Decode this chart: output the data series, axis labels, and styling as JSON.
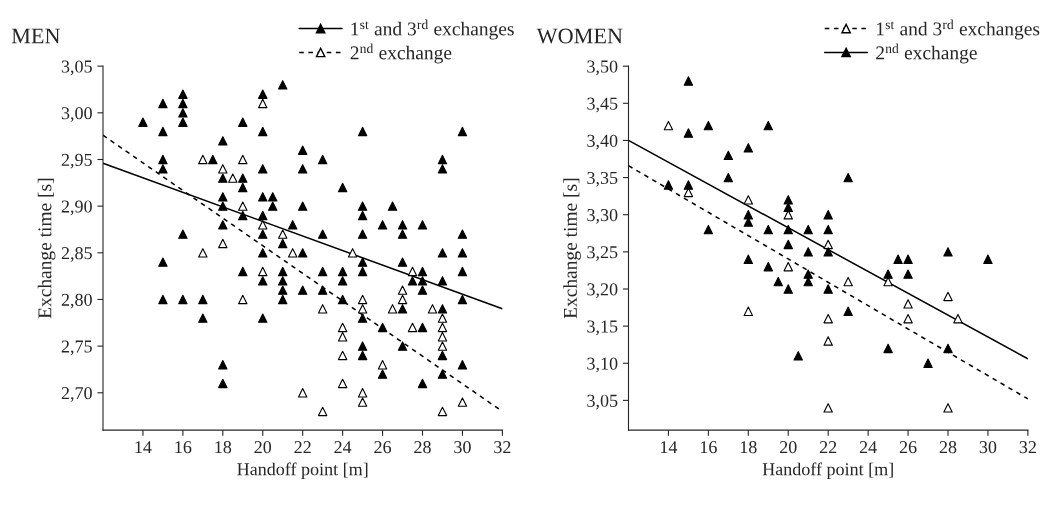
{
  "chart_data": [
    {
      "type": "scatter",
      "title": "MEN",
      "xlabel": "Handoff point [m]",
      "ylabel": "Exchange time [s]",
      "xlim": [
        12,
        32
      ],
      "ylim": [
        2.66,
        3.05
      ],
      "xticks": [
        14,
        16,
        18,
        20,
        22,
        24,
        26,
        28,
        30,
        32
      ],
      "yticks": [
        {
          "value": 2.7,
          "label": "2,70"
        },
        {
          "value": 2.75,
          "label": "2,75"
        },
        {
          "value": 2.8,
          "label": "2,80"
        },
        {
          "value": 2.85,
          "label": "2,85"
        },
        {
          "value": 2.9,
          "label": "2,90"
        },
        {
          "value": 2.95,
          "label": "2,95"
        },
        {
          "value": 3.0,
          "label": "3,00"
        },
        {
          "value": 3.05,
          "label": "3,05"
        }
      ],
      "grid": false,
      "legend": "top right",
      "series": [
        {
          "name": "1$^{st}$ and 3$^{rd}$ exchanges",
          "marker": "triangle",
          "color": "#000000",
          "x": [
            14,
            15,
            15,
            15,
            15,
            15,
            15,
            16,
            16,
            16,
            16,
            16,
            16,
            17,
            17,
            17.5,
            18,
            18,
            18,
            18,
            18,
            18,
            18,
            19,
            19,
            19,
            19,
            19,
            20,
            20,
            20,
            20,
            20,
            20,
            20,
            20,
            20,
            20.5,
            20.5,
            21,
            21,
            21,
            21,
            21,
            21,
            21.5,
            22,
            22,
            22,
            22,
            22,
            23,
            23,
            23,
            23,
            24,
            24,
            24,
            24,
            25,
            25,
            25,
            25,
            25,
            25,
            25,
            25,
            25,
            26,
            26,
            26,
            26.5,
            27,
            27,
            27,
            27,
            27,
            27.5,
            28,
            28,
            28,
            28,
            28,
            28,
            29,
            29,
            29,
            29,
            29,
            29,
            29,
            30,
            30,
            30,
            30,
            30,
            30
          ],
          "values": [
            2.99,
            3.01,
            2.98,
            2.95,
            2.94,
            2.84,
            2.8,
            3.02,
            3.01,
            3.0,
            2.99,
            2.87,
            2.8,
            2.8,
            2.78,
            2.95,
            2.97,
            2.93,
            2.91,
            2.9,
            2.88,
            2.73,
            2.71,
            2.99,
            2.93,
            2.92,
            2.89,
            2.83,
            3.02,
            2.98,
            2.94,
            2.91,
            2.89,
            2.87,
            2.85,
            2.82,
            2.78,
            2.91,
            2.9,
            3.03,
            2.86,
            2.83,
            2.82,
            2.81,
            2.8,
            2.88,
            2.96,
            2.94,
            2.9,
            2.85,
            2.81,
            2.95,
            2.87,
            2.83,
            2.81,
            2.92,
            2.83,
            2.82,
            2.8,
            2.98,
            2.9,
            2.89,
            2.87,
            2.84,
            2.83,
            2.78,
            2.75,
            2.74,
            2.88,
            2.77,
            2.72,
            2.9,
            2.88,
            2.87,
            2.84,
            2.79,
            2.75,
            2.82,
            2.88,
            2.83,
            2.82,
            2.81,
            2.77,
            2.71,
            2.95,
            2.94,
            2.85,
            2.82,
            2.79,
            2.74,
            2.72,
            2.98,
            2.87,
            2.85,
            2.83,
            2.8,
            2.73
          ]
        },
        {
          "name": "2$^{nd}$ exchange",
          "marker": "triangle",
          "color": "#ffffff",
          "x": [
            17,
            17,
            18,
            18,
            18.5,
            19,
            19,
            19,
            20,
            20,
            20,
            21,
            21.5,
            22,
            23,
            23,
            24,
            24,
            24,
            24,
            24.5,
            25,
            25,
            25,
            25,
            26,
            26.5,
            27,
            27,
            27.5,
            27.5,
            28.5,
            29,
            29,
            29,
            29,
            29,
            30
          ],
          "values": [
            2.95,
            2.85,
            2.94,
            2.86,
            2.93,
            2.95,
            2.9,
            2.8,
            3.01,
            2.88,
            2.83,
            2.87,
            2.85,
            2.7,
            2.79,
            2.68,
            2.77,
            2.76,
            2.74,
            2.71,
            2.85,
            2.8,
            2.79,
            2.7,
            2.69,
            2.73,
            2.79,
            2.81,
            2.8,
            2.83,
            2.77,
            2.79,
            2.78,
            2.77,
            2.76,
            2.75,
            2.68,
            2.69
          ]
        },
        {
          "type": "line",
          "color": "#000000",
          "line_style": "solid",
          "x": [
            12,
            32
          ],
          "values": [
            2.946,
            2.79
          ]
        },
        {
          "type": "line",
          "color": "#000000",
          "line_style": "dashed",
          "x": [
            12,
            32
          ],
          "values": [
            2.976,
            2.68
          ]
        }
      ]
    },
    {
      "type": "scatter",
      "title": "WOMEN",
      "xlabel": "Handoff point [m]",
      "ylabel": "Exchange time [s]",
      "xlim": [
        12,
        32
      ],
      "ylim": [
        3.01,
        3.5
      ],
      "xticks": [
        14,
        16,
        18,
        20,
        22,
        24,
        26,
        28,
        30,
        32
      ],
      "yticks": [
        {
          "value": 3.05,
          "label": "3,05"
        },
        {
          "value": 3.1,
          "label": "3,10"
        },
        {
          "value": 3.15,
          "label": "3,15"
        },
        {
          "value": 3.2,
          "label": "3,20"
        },
        {
          "value": 3.25,
          "label": "3,25"
        },
        {
          "value": 3.3,
          "label": "3,30"
        },
        {
          "value": 3.35,
          "label": "3,35"
        },
        {
          "value": 3.4,
          "label": "3,40"
        },
        {
          "value": 3.45,
          "label": "3,45"
        },
        {
          "value": 3.5,
          "label": "3,50"
        }
      ],
      "grid": false,
      "legend": "top right",
      "series": [
        {
          "name": "1$^{st}$ and 3$^{rd}$ exchanges",
          "marker": "triangle",
          "color": "#ffffff",
          "x": [
            14,
            15,
            18,
            18,
            20,
            20,
            22,
            22,
            22,
            22,
            23,
            25,
            26,
            26,
            28,
            28,
            28.5
          ],
          "values": [
            3.42,
            3.33,
            3.32,
            3.17,
            3.3,
            3.23,
            3.26,
            3.16,
            3.13,
            3.04,
            3.21,
            3.21,
            3.18,
            3.16,
            3.19,
            3.04,
            3.16
          ]
        },
        {
          "name": "2$^{nd}$ exchange",
          "marker": "triangle",
          "color": "#000000",
          "x": [
            14,
            15,
            15,
            15,
            16,
            16,
            17,
            17,
            18,
            18,
            18,
            18,
            19,
            19,
            19,
            19.5,
            20,
            20,
            20,
            20,
            20,
            20.5,
            21,
            21,
            21,
            21,
            22,
            22,
            22,
            22,
            23,
            23,
            25,
            25,
            25.5,
            26,
            26,
            27,
            28,
            28,
            30
          ],
          "values": [
            3.34,
            3.48,
            3.41,
            3.34,
            3.42,
            3.28,
            3.38,
            3.35,
            3.39,
            3.3,
            3.29,
            3.24,
            3.42,
            3.28,
            3.23,
            3.21,
            3.32,
            3.31,
            3.28,
            3.26,
            3.2,
            3.11,
            3.28,
            3.25,
            3.22,
            3.21,
            3.3,
            3.28,
            3.25,
            3.2,
            3.35,
            3.17,
            3.22,
            3.12,
            3.24,
            3.24,
            3.22,
            3.1,
            3.25,
            3.12,
            3.24
          ]
        },
        {
          "type": "line",
          "color": "#000000",
          "line_style": "dashed",
          "x": [
            12,
            32
          ],
          "values": [
            3.366,
            3.052
          ]
        },
        {
          "type": "line",
          "color": "#000000",
          "line_style": "solid",
          "x": [
            12,
            32
          ],
          "values": [
            3.4,
            3.106
          ]
        }
      ]
    }
  ]
}
